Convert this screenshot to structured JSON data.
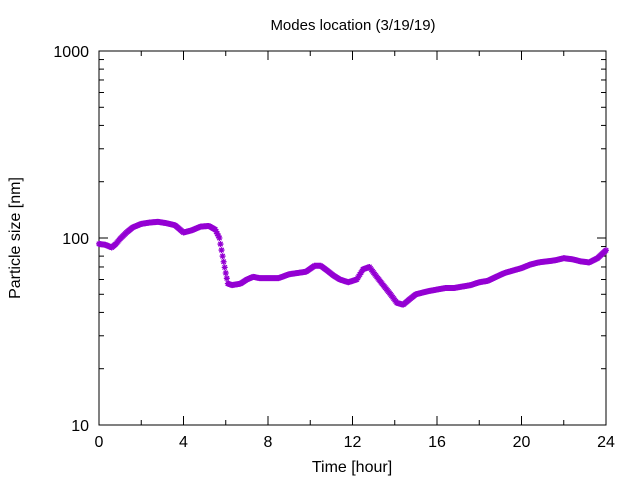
{
  "chart_data": {
    "type": "scatter",
    "title": "Modes location (3/19/19)",
    "xlabel": "Time [hour]",
    "ylabel": "Particle size [nm]",
    "xlim": [
      0,
      24
    ],
    "ylim": [
      10,
      1000
    ],
    "yscale": "log",
    "xticks": [
      "0",
      "4",
      "8",
      "12",
      "16",
      "20",
      "24"
    ],
    "yticks": [
      "10",
      "100",
      "1000"
    ],
    "grid": false,
    "legend": "none",
    "marker_color": "#9400d3",
    "series": [
      {
        "x": [
          0.0,
          0.3,
          0.6,
          0.8,
          1.0,
          1.3,
          1.6,
          2.0,
          2.4,
          2.8,
          3.2,
          3.6,
          4.0,
          4.4,
          4.8,
          5.2,
          5.5,
          5.7,
          5.85,
          6.0,
          6.1,
          6.3,
          6.7,
          7.0,
          7.3,
          7.6,
          8.0,
          8.5,
          9.0,
          9.4,
          9.8,
          10.2,
          10.5,
          10.8,
          11.1,
          11.4,
          11.8,
          12.2,
          12.5,
          12.8,
          13.1,
          13.4,
          13.8,
          14.1,
          14.4,
          14.7,
          15.0,
          15.3,
          15.6,
          16.0,
          16.4,
          16.8,
          17.2,
          17.6,
          18.0,
          18.4,
          18.8,
          19.2,
          19.6,
          20.0,
          20.4,
          20.8,
          21.2,
          21.6,
          22.0,
          22.4,
          22.8,
          23.2,
          23.6,
          24.0
        ],
        "y": [
          93,
          92,
          89,
          93,
          99,
          107,
          114,
          119,
          121,
          122,
          120,
          117,
          107,
          110,
          115,
          116,
          111,
          100,
          80,
          65,
          57,
          56,
          57,
          60,
          62,
          61,
          61,
          61,
          64,
          65,
          66,
          71,
          71,
          67,
          63,
          60,
          58,
          60,
          68,
          70,
          63,
          57,
          50,
          45,
          44,
          47,
          50,
          51,
          52,
          53,
          54,
          54,
          55,
          56,
          58,
          59,
          62,
          65,
          67,
          69,
          72,
          74,
          75,
          76,
          78,
          77,
          75,
          74,
          78,
          86
        ]
      }
    ]
  }
}
